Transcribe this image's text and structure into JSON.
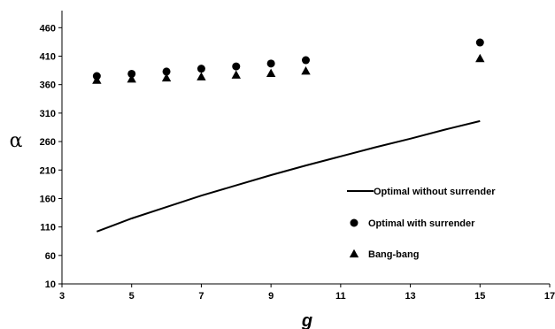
{
  "chart_data": {
    "type": "line",
    "title": "",
    "xlabel": "g",
    "ylabel": "α",
    "xlim": [
      3,
      17
    ],
    "ylim": [
      10,
      490
    ],
    "x_ticks": [
      3,
      5,
      7,
      9,
      11,
      13,
      15,
      17
    ],
    "y_ticks": [
      10,
      60,
      110,
      160,
      210,
      260,
      310,
      360,
      410,
      460
    ],
    "grid": false,
    "legend_position": "right",
    "series": [
      {
        "name": "Optimal without surrender",
        "kind": "line",
        "color": "#000000",
        "x": [
          4,
          5,
          6,
          7,
          8,
          9,
          10,
          11,
          12,
          13,
          14,
          15
        ],
        "y": [
          102,
          125,
          145,
          165,
          183,
          201,
          218,
          234,
          250,
          265,
          281,
          296
        ]
      },
      {
        "name": "Optimal with surrender",
        "kind": "marker",
        "marker": "circle",
        "color": "#000000",
        "x": [
          4,
          5,
          6,
          7,
          8,
          9,
          10,
          15
        ],
        "y": [
          375,
          379,
          383,
          388,
          392,
          397,
          403,
          434
        ]
      },
      {
        "name": "Bang-bang",
        "kind": "marker",
        "marker": "triangle",
        "color": "#000000",
        "x": [
          4,
          5,
          6,
          7,
          8,
          9,
          10,
          15
        ],
        "y": [
          368,
          370,
          372,
          374,
          377,
          380,
          384,
          406
        ]
      }
    ]
  }
}
